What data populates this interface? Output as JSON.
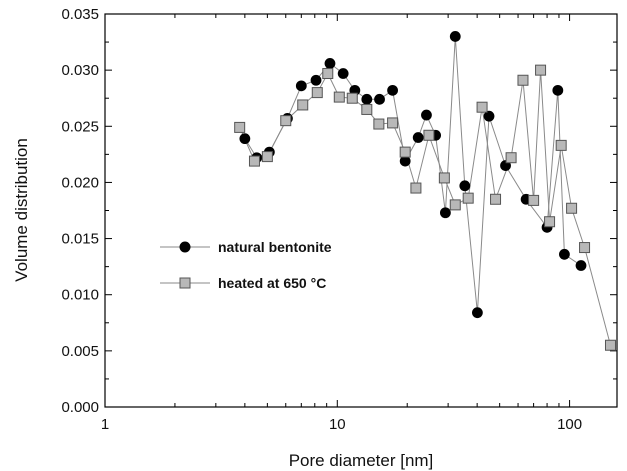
{
  "chart_data": {
    "type": "scatter",
    "xlabel": "Pore diameter [nm]",
    "ylabel": "Volume distribution",
    "xscale": "log",
    "xlim": [
      1,
      160
    ],
    "ylim": [
      0,
      0.035
    ],
    "xticks": [
      {
        "value": 1,
        "label": "1"
      },
      {
        "value": 10,
        "label": "10"
      },
      {
        "value": 100,
        "label": "100"
      }
    ],
    "yticks": [
      {
        "value": 0,
        "label": "0.000"
      },
      {
        "value": 0.005,
        "label": "0.005"
      },
      {
        "value": 0.01,
        "label": "0.010"
      },
      {
        "value": 0.015,
        "label": "0.015"
      },
      {
        "value": 0.02,
        "label": "0.020"
      },
      {
        "value": 0.025,
        "label": "0.025"
      },
      {
        "value": 0.03,
        "label": "0.030"
      },
      {
        "value": 0.035,
        "label": "0.035"
      }
    ],
    "grid": false,
    "legend_position": "lower-left",
    "series": [
      {
        "name": "natural bentonite",
        "marker": "circle",
        "color": "#000000",
        "x": [
          4.0,
          4.5,
          5.1,
          6.1,
          7.0,
          8.1,
          9.3,
          10.6,
          11.9,
          13.4,
          15.2,
          17.3,
          19.6,
          22.3,
          24.2,
          26.5,
          29.2,
          32.2,
          35.4,
          40.1,
          45.0,
          53.0,
          65.0,
          80.0,
          89.0,
          95.0,
          112.0
        ],
        "y": [
          0.0239,
          0.0222,
          0.0227,
          0.0257,
          0.0286,
          0.0291,
          0.0306,
          0.0297,
          0.0282,
          0.0274,
          0.0274,
          0.0282,
          0.0219,
          0.024,
          0.026,
          0.0242,
          0.0173,
          0.033,
          0.0197,
          0.0084,
          0.0259,
          0.0215,
          0.0185,
          0.016,
          0.0282,
          0.0136,
          0.0126
        ]
      },
      {
        "name": "heated at 650 °C",
        "marker": "square",
        "color": "#b8b8b8",
        "x": [
          3.8,
          4.4,
          5.0,
          6.0,
          7.1,
          8.2,
          9.1,
          10.2,
          11.6,
          13.4,
          15.1,
          17.3,
          19.6,
          21.8,
          24.8,
          28.9,
          32.2,
          36.6,
          42.0,
          48.0,
          56.0,
          63.0,
          70.0,
          75.0,
          82.0,
          92.0,
          102.0,
          116.0,
          150.0
        ],
        "y": [
          0.0249,
          0.0219,
          0.0223,
          0.0255,
          0.0269,
          0.028,
          0.0297,
          0.0276,
          0.0275,
          0.0265,
          0.0252,
          0.0253,
          0.0227,
          0.0195,
          0.0242,
          0.0204,
          0.018,
          0.0186,
          0.0267,
          0.0185,
          0.0222,
          0.0291,
          0.0184,
          0.03,
          0.0165,
          0.0233,
          0.0177,
          0.0142,
          0.0055
        ]
      }
    ]
  }
}
